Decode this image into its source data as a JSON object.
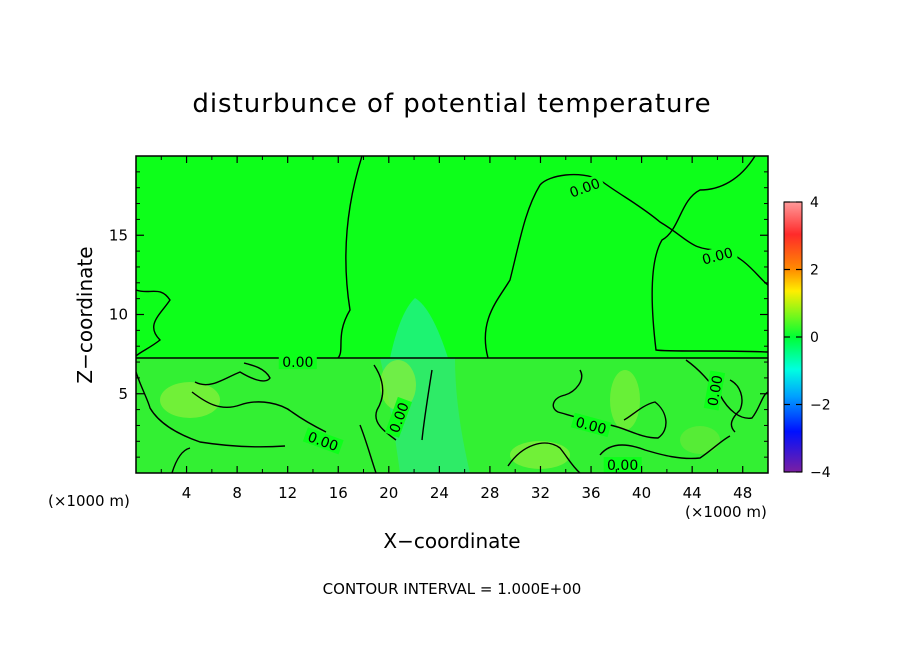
{
  "chart_data": {
    "type": "heatmap",
    "title": "disturbunce of potential temperature",
    "xlabel": "X−coordinate",
    "ylabel": "Z−coordinate",
    "x_unit_left": "(×1000 m)",
    "x_unit_right": "(×1000 m)",
    "xlim": [
      0,
      50
    ],
    "ylim": [
      0,
      20
    ],
    "x_ticks": [
      4,
      8,
      12,
      16,
      20,
      24,
      28,
      32,
      36,
      40,
      44,
      48
    ],
    "y_ticks": [
      5,
      10,
      15
    ],
    "colorbar": {
      "range": [
        -4,
        4
      ],
      "ticks": [
        4,
        2,
        0,
        -2,
        -4
      ],
      "tick_labels": [
        "4",
        "2",
        "0",
        "−2",
        "−4"
      ]
    },
    "contour_labels": [
      {
        "text": "0.00",
        "x": 35.5,
        "z": 18.0,
        "angle": 20
      },
      {
        "text": "0.00",
        "x": 46.0,
        "z": 13.7,
        "angle": 15
      },
      {
        "text": "0.00",
        "x": 12.8,
        "z": 7.0,
        "angle": 0
      },
      {
        "text": "0.00",
        "x": 14.8,
        "z": 2.0,
        "angle": -20
      },
      {
        "text": "0.00",
        "x": 20.8,
        "z": 3.5,
        "angle": 70
      },
      {
        "text": "0.00",
        "x": 36.0,
        "z": 3.0,
        "angle": -15
      },
      {
        "text": "0.00",
        "x": 45.8,
        "z": 5.2,
        "angle": 80
      },
      {
        "text": "0.00",
        "x": 38.5,
        "z": 0.5,
        "angle": 0
      }
    ],
    "footer": "CONTOUR INTERVAL = 1.000E+00"
  }
}
